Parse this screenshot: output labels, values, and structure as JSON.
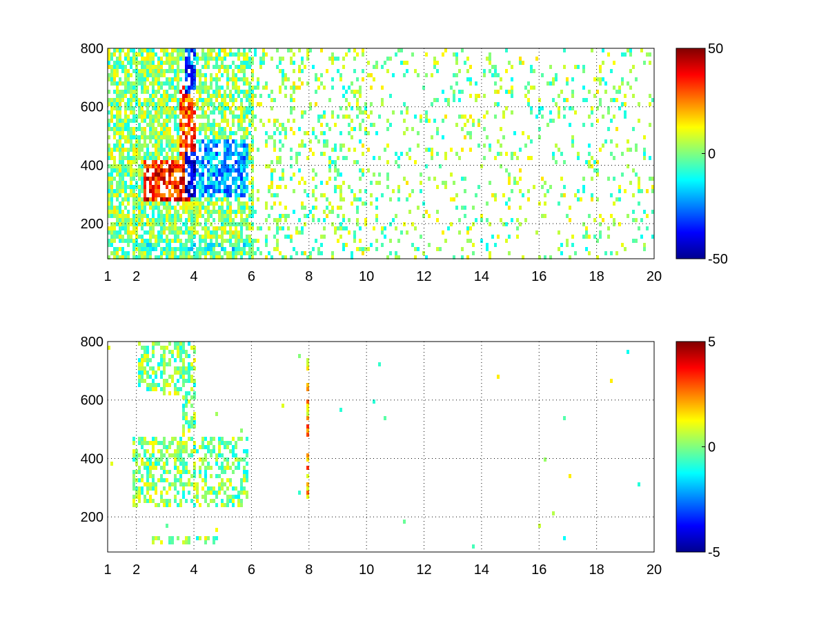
{
  "chart_data": [
    {
      "type": "heatmap",
      "title": "",
      "xlabel": "",
      "ylabel": "",
      "xlim": [
        1,
        20
      ],
      "ylim": [
        80,
        800
      ],
      "x_scale": "linear",
      "x_ticks": [
        "1",
        "2",
        "4",
        "6",
        "8",
        "10",
        "12",
        "14",
        "16",
        "18",
        "20"
      ],
      "x_tick_values": [
        1,
        2,
        4,
        6,
        8,
        10,
        12,
        14,
        16,
        18,
        20
      ],
      "y_ticks": [
        "200",
        "400",
        "600",
        "800"
      ],
      "y_tick_values": [
        200,
        400,
        600,
        800
      ],
      "grid": true,
      "colormap": "jet",
      "clim": [
        -50,
        50
      ],
      "colorbar_ticks": [
        "50",
        "0",
        "-50"
      ],
      "colorbar_tick_values": [
        50,
        0,
        -50
      ],
      "colorbar_position": "right",
      "features": [
        {
          "desc": "positive band",
          "x": [
            2.2,
            3.8
          ],
          "y": [
            280,
            420
          ],
          "value": 35
        },
        {
          "desc": "positive diagonal ridge",
          "x": [
            3.4,
            4.0
          ],
          "y": [
            420,
            700
          ],
          "value": 30
        },
        {
          "desc": "negative core",
          "x": [
            3.6,
            4.4
          ],
          "y": [
            300,
            460
          ],
          "value": -40
        },
        {
          "desc": "negative column",
          "x": [
            3.6,
            4.0
          ],
          "y": [
            650,
            800
          ],
          "value": -30
        },
        {
          "desc": "negative diagonal",
          "x": [
            4.0,
            5.8
          ],
          "y": [
            300,
            500
          ],
          "value": -20
        },
        {
          "desc": "low band",
          "x": [
            2.0,
            5.8
          ],
          "y": [
            110,
            140
          ],
          "value": -10
        }
      ]
    },
    {
      "type": "heatmap",
      "title": "",
      "xlabel": "",
      "ylabel": "",
      "xlim": [
        1,
        20
      ],
      "ylim": [
        80,
        800
      ],
      "x_scale": "linear",
      "x_ticks": [
        "1",
        "2",
        "4",
        "6",
        "8",
        "10",
        "12",
        "14",
        "16",
        "18",
        "20"
      ],
      "x_tick_values": [
        1,
        2,
        4,
        6,
        8,
        10,
        12,
        14,
        16,
        18,
        20
      ],
      "y_ticks": [
        "200",
        "400",
        "600",
        "800"
      ],
      "y_tick_values": [
        200,
        400,
        600,
        800
      ],
      "grid": true,
      "colormap": "jet",
      "clim": [
        -5,
        5
      ],
      "colorbar_ticks": [
        "5",
        "0",
        "-5"
      ],
      "colorbar_tick_values": [
        5,
        0,
        -5
      ],
      "colorbar_position": "right",
      "features": [
        {
          "desc": "main cluster",
          "x": [
            1.8,
            5.8
          ],
          "y": [
            240,
            480
          ],
          "value": 0
        },
        {
          "desc": "upper cluster",
          "x": [
            2.0,
            3.6
          ],
          "y": [
            620,
            800
          ],
          "value": 0
        },
        {
          "desc": "column near x=4",
          "x": [
            3.5,
            4.0
          ],
          "y": [
            240,
            800
          ],
          "value": 0
        },
        {
          "desc": "column near x=8",
          "x": [
            7.9,
            8.0
          ],
          "y": [
            250,
            750
          ],
          "value": 2
        },
        {
          "desc": "low band",
          "x": [
            2.5,
            4.8
          ],
          "y": [
            110,
            140
          ],
          "value": 0
        }
      ]
    }
  ]
}
